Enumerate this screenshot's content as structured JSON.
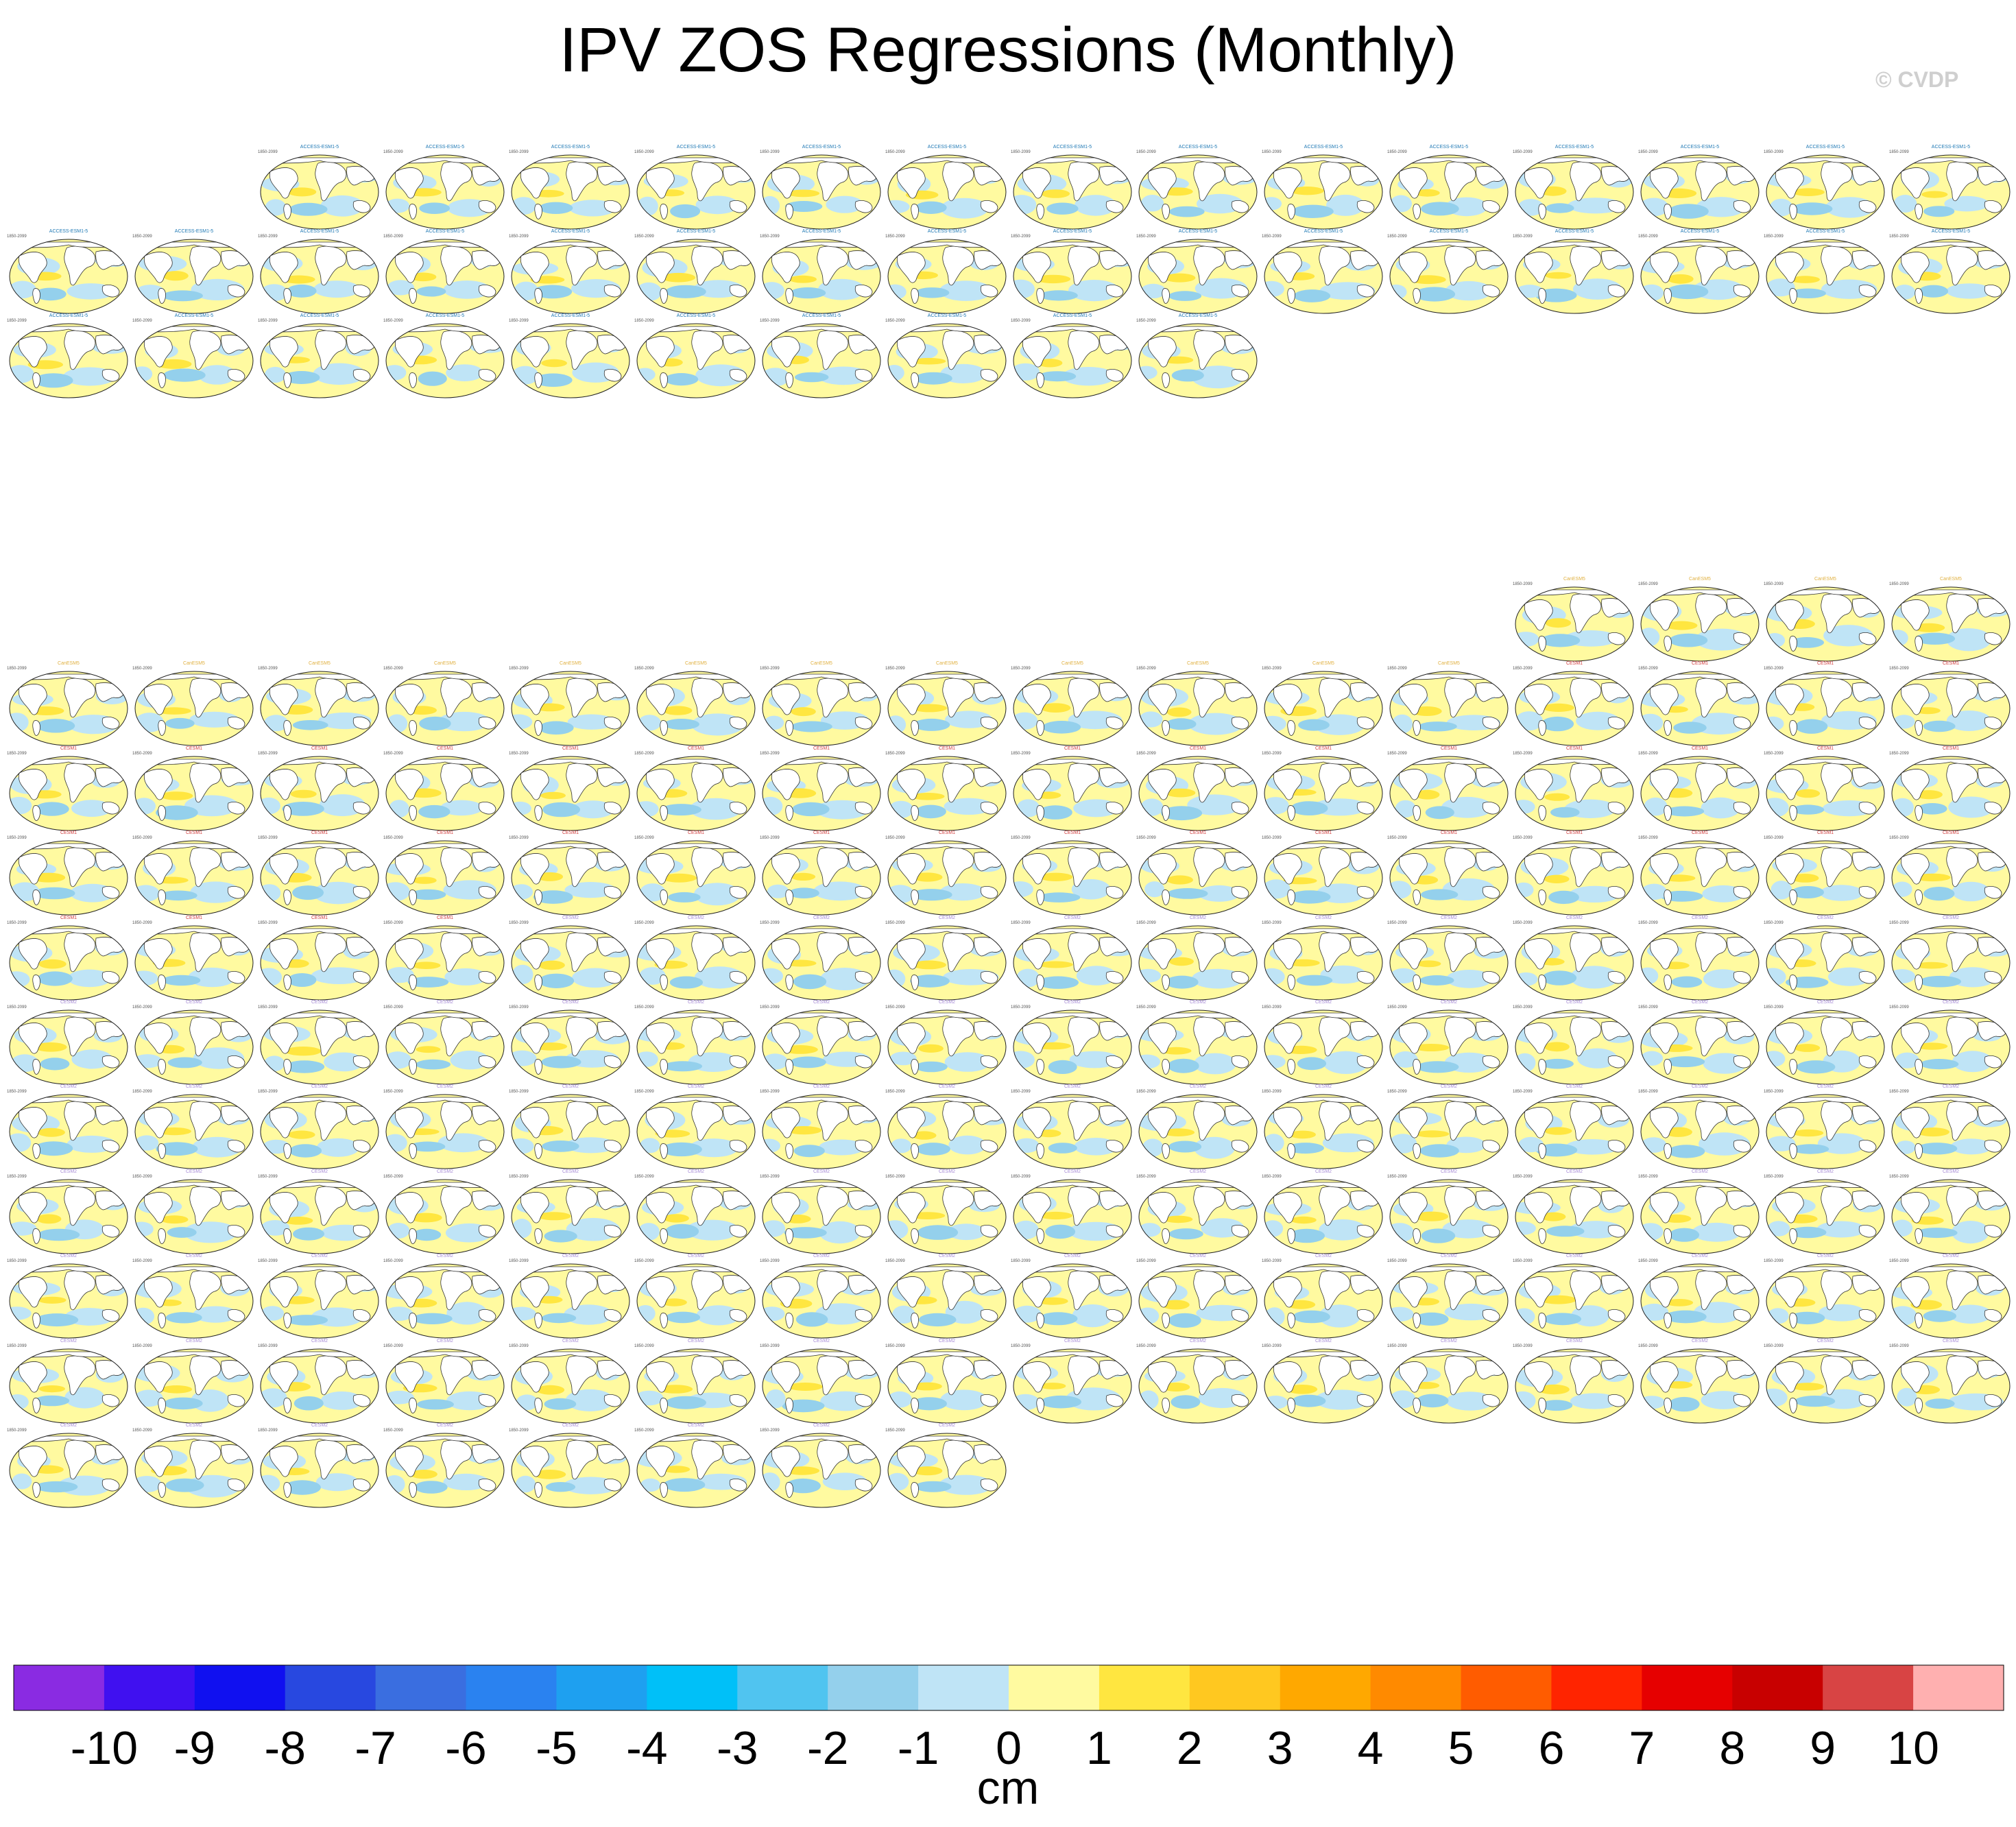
{
  "title": "IPV ZOS Regressions (Monthly)",
  "watermark": "© CVDP",
  "chart_data": {
    "type": "heatmap",
    "title": "IPV ZOS Regressions (Monthly)",
    "panel_period": "1850-2099",
    "panel_groups": [
      {
        "model": "ACCESS-ESM1-5",
        "panel_count": 40,
        "caption_color": "#1e78b4"
      },
      {
        "model": "CanESM5",
        "panel_count": 16,
        "caption_color": "#e0b040"
      },
      {
        "model": "CESM1",
        "panel_count": 40,
        "caption_color": "#d23c3c"
      },
      {
        "model": "CESM2",
        "panel_count": 100,
        "caption_color": "#a78bd6"
      }
    ],
    "colorbar": {
      "label": "cm",
      "tick_labels": [
        "-10",
        "-9",
        "-8",
        "-7",
        "-6",
        "-5",
        "-4",
        "-3",
        "-2",
        "-1",
        "0",
        "1",
        "2",
        "3",
        "4",
        "5",
        "6",
        "7",
        "8",
        "9",
        "10"
      ],
      "colors": [
        "#8a2be2",
        "#4010f0",
        "#1010f0",
        "#2848e0",
        "#3a6ee0",
        "#2a82f0",
        "#1ea0f0",
        "#00c0f8",
        "#50c4f0",
        "#94d0ec",
        "#bfe4f6",
        "#fffaa0",
        "#ffe640",
        "#ffc820",
        "#ffa800",
        "#ff8a00",
        "#ff5c00",
        "#ff2400",
        "#e60000",
        "#c80000",
        "#d84444",
        "#ffb0b0"
      ]
    }
  }
}
